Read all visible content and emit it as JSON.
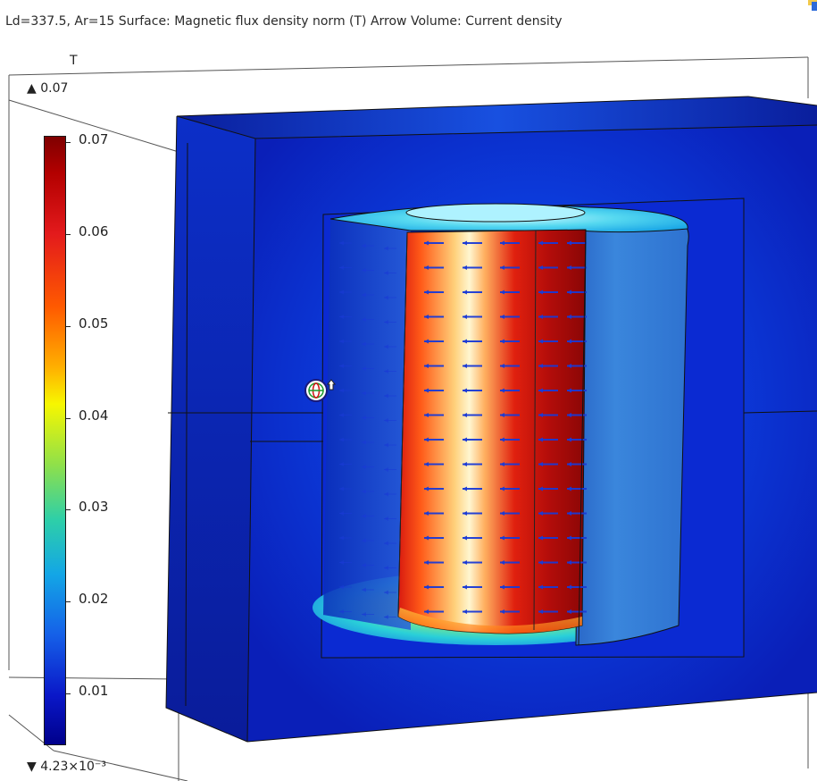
{
  "header": {
    "text": "Ld=337.5, Ar=15   Surface: Magnetic flux density norm (T)  Arrow Volume: Current density"
  },
  "colorbar": {
    "unit": "T",
    "max_label": "▲ 0.07",
    "min_label": "▼ 4.23×10⁻³",
    "ticks": [
      "0.07",
      "0.06",
      "0.05",
      "0.04",
      "0.03",
      "0.02",
      "0.01"
    ],
    "colormap": "rainbow",
    "range": [
      0.00423,
      0.07
    ]
  },
  "icons": {
    "cursor": "rotate-globe-cursor-icon",
    "corner": "window-corner-icon"
  },
  "colors": {
    "box_dark": "#0a1e9c",
    "box_mid": "#0a2fd6",
    "coil_hot": "#e41a10",
    "coil_highlight": "#fff3a0",
    "arrow": "#1a3ad6"
  }
}
